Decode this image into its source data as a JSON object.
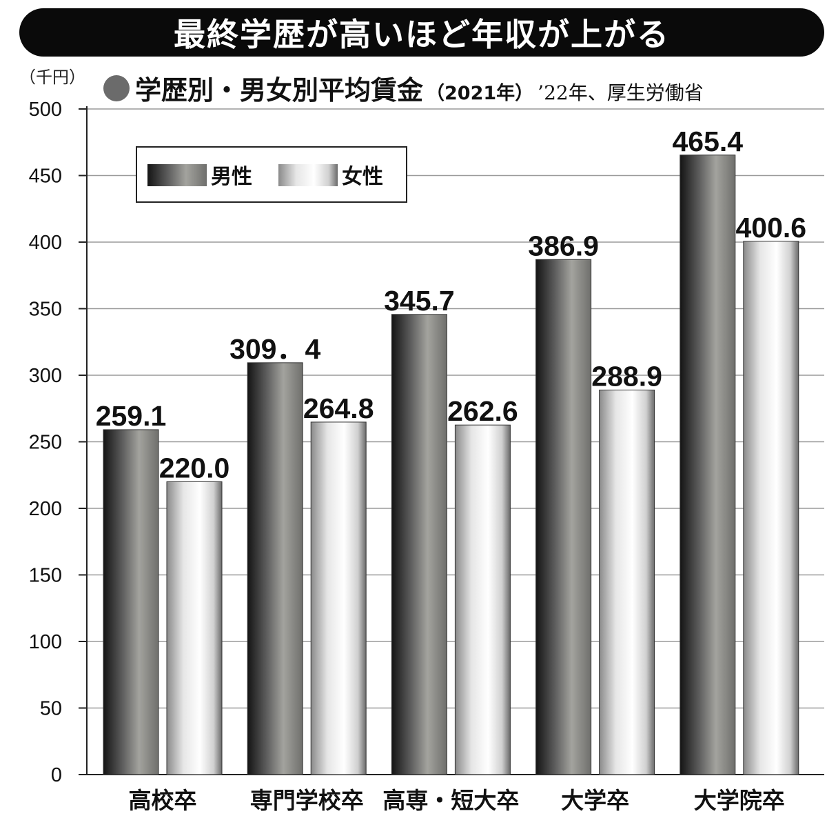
{
  "banner": {
    "title": "最終学歴が高いほど年収が上がる"
  },
  "unit_label": "（千円）",
  "subtitle": {
    "main": "学歴別・男女別平均賃金",
    "year": "（2021年）",
    "source": "’22年、厚生労働省"
  },
  "colors": {
    "male_dark": "#2b2b2b",
    "male_mid": "#9a9a96",
    "female_light": "#ffffff",
    "female_edge": "#8c8c8c",
    "grid": "#9a9a9a",
    "banner": "#0a0a0a"
  },
  "chart_data": {
    "type": "bar",
    "categories": [
      "高校卒",
      "専門学校卒",
      "高専・短大卒",
      "大学卒",
      "大学院卒"
    ],
    "series": [
      {
        "name": "男性",
        "values": [
          259.1,
          309.4,
          345.7,
          386.9,
          465.4
        ],
        "labels": [
          "259.1",
          "309．4",
          "345.7",
          "386.9",
          "465.4"
        ]
      },
      {
        "name": "女性",
        "values": [
          220.0,
          264.8,
          262.6,
          288.9,
          400.6
        ],
        "labels": [
          "220.0",
          "264.8",
          "262.6",
          "288.9",
          "400.6"
        ]
      }
    ],
    "ylim": [
      0,
      500
    ],
    "yticks": [
      0,
      50,
      100,
      150,
      200,
      250,
      300,
      350,
      400,
      450,
      500
    ],
    "grid": true,
    "legend_position": "top-left"
  }
}
